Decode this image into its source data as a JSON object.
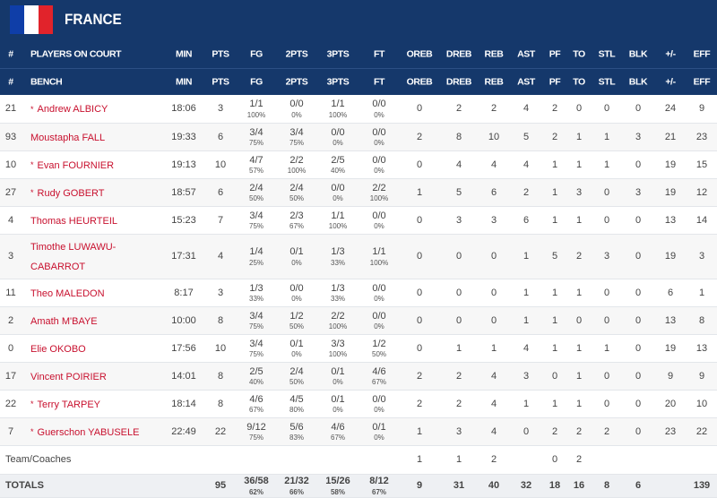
{
  "team": "FRANCE",
  "header_rows": [
    [
      "#",
      "PLAYERS ON COURT",
      "MIN",
      "PTS",
      "FG",
      "2PTS",
      "3PTS",
      "FT",
      "OREB",
      "DREB",
      "REB",
      "AST",
      "PF",
      "TO",
      "STL",
      "BLK",
      "+/-",
      "EFF"
    ],
    [
      "#",
      "BENCH",
      "MIN",
      "PTS",
      "FG",
      "2PTS",
      "3PTS",
      "FT",
      "OREB",
      "DREB",
      "REB",
      "AST",
      "PF",
      "TO",
      "STL",
      "BLK",
      "+/-",
      "EFF"
    ]
  ],
  "players": [
    {
      "number": 21,
      "starter_mark": "*",
      "name": "Andrew ALBICY",
      "min": "18:06",
      "pts": 3,
      "fg": {
        "att": "1/1",
        "pct": "100%"
      },
      "p2": {
        "att": "0/0",
        "pct": "0%"
      },
      "p3": {
        "att": "1/1",
        "pct": "100%"
      },
      "ft": {
        "att": "0/0",
        "pct": "0%"
      },
      "oreb": 0,
      "dreb": 2,
      "reb": 2,
      "ast": 4,
      "pf": 2,
      "to": 0,
      "stl": 0,
      "blk": 0,
      "pm": 24,
      "eff": 9
    },
    {
      "number": 93,
      "name": "Moustapha FALL",
      "min": "19:33",
      "pts": 6,
      "fg": {
        "att": "3/4",
        "pct": "75%"
      },
      "p2": {
        "att": "3/4",
        "pct": "75%"
      },
      "p3": {
        "att": "0/0",
        "pct": "0%"
      },
      "ft": {
        "att": "0/0",
        "pct": "0%"
      },
      "oreb": 2,
      "dreb": 8,
      "reb": 10,
      "ast": 5,
      "pf": 2,
      "to": 1,
      "stl": 1,
      "blk": 3,
      "pm": 21,
      "eff": 23
    },
    {
      "number": 10,
      "starter_mark": "*",
      "name": "Evan FOURNIER",
      "min": "19:13",
      "pts": 10,
      "fg": {
        "att": "4/7",
        "pct": "57%"
      },
      "p2": {
        "att": "2/2",
        "pct": "100%"
      },
      "p3": {
        "att": "2/5",
        "pct": "40%"
      },
      "ft": {
        "att": "0/0",
        "pct": "0%"
      },
      "oreb": 0,
      "dreb": 4,
      "reb": 4,
      "ast": 4,
      "pf": 1,
      "to": 1,
      "stl": 1,
      "blk": 0,
      "pm": 19,
      "eff": 15
    },
    {
      "number": 27,
      "starter_mark": "*",
      "name": "Rudy GOBERT",
      "min": "18:57",
      "pts": 6,
      "fg": {
        "att": "2/4",
        "pct": "50%"
      },
      "p2": {
        "att": "2/4",
        "pct": "50%"
      },
      "p3": {
        "att": "0/0",
        "pct": "0%"
      },
      "ft": {
        "att": "2/2",
        "pct": "100%"
      },
      "oreb": 1,
      "dreb": 5,
      "reb": 6,
      "ast": 2,
      "pf": 1,
      "to": 3,
      "stl": 0,
      "blk": 3,
      "pm": 19,
      "eff": 12
    },
    {
      "number": 4,
      "name": "Thomas HEURTEIL",
      "min": "15:23",
      "pts": 7,
      "fg": {
        "att": "3/4",
        "pct": "75%"
      },
      "p2": {
        "att": "2/3",
        "pct": "67%"
      },
      "p3": {
        "att": "1/1",
        "pct": "100%"
      },
      "ft": {
        "att": "0/0",
        "pct": "0%"
      },
      "oreb": 0,
      "dreb": 3,
      "reb": 3,
      "ast": 6,
      "pf": 1,
      "to": 1,
      "stl": 0,
      "blk": 0,
      "pm": 13,
      "eff": 14
    },
    {
      "number": 3,
      "name": "Timothe LUWAWU-CABARROT",
      "min": "17:31",
      "pts": 4,
      "fg": {
        "att": "1/4",
        "pct": "25%"
      },
      "p2": {
        "att": "0/1",
        "pct": "0%"
      },
      "p3": {
        "att": "1/3",
        "pct": "33%"
      },
      "ft": {
        "att": "1/1",
        "pct": "100%"
      },
      "oreb": 0,
      "dreb": 0,
      "reb": 0,
      "ast": 1,
      "pf": 5,
      "to": 2,
      "stl": 3,
      "blk": 0,
      "pm": 19,
      "eff": 3
    },
    {
      "number": 11,
      "name": "Theo MALEDON",
      "min": "8:17",
      "pts": 3,
      "fg": {
        "att": "1/3",
        "pct": "33%"
      },
      "p2": {
        "att": "0/0",
        "pct": "0%"
      },
      "p3": {
        "att": "1/3",
        "pct": "33%"
      },
      "ft": {
        "att": "0/0",
        "pct": "0%"
      },
      "oreb": 0,
      "dreb": 0,
      "reb": 0,
      "ast": 1,
      "pf": 1,
      "to": 1,
      "stl": 0,
      "blk": 0,
      "pm": 6,
      "eff": 1
    },
    {
      "number": 2,
      "name": "Amath M'BAYE",
      "min": "10:00",
      "pts": 8,
      "fg": {
        "att": "3/4",
        "pct": "75%"
      },
      "p2": {
        "att": "1/2",
        "pct": "50%"
      },
      "p3": {
        "att": "2/2",
        "pct": "100%"
      },
      "ft": {
        "att": "0/0",
        "pct": "0%"
      },
      "oreb": 0,
      "dreb": 0,
      "reb": 0,
      "ast": 1,
      "pf": 1,
      "to": 0,
      "stl": 0,
      "blk": 0,
      "pm": 13,
      "eff": 8
    },
    {
      "number": 0,
      "name": "Elie OKOBO",
      "min": "17:56",
      "pts": 10,
      "fg": {
        "att": "3/4",
        "pct": "75%"
      },
      "p2": {
        "att": "0/1",
        "pct": "0%"
      },
      "p3": {
        "att": "3/3",
        "pct": "100%"
      },
      "ft": {
        "att": "1/2",
        "pct": "50%"
      },
      "oreb": 0,
      "dreb": 1,
      "reb": 1,
      "ast": 4,
      "pf": 1,
      "to": 1,
      "stl": 1,
      "blk": 0,
      "pm": 19,
      "eff": 13
    },
    {
      "number": 17,
      "name": "Vincent POIRIER",
      "min": "14:01",
      "pts": 8,
      "fg": {
        "att": "2/5",
        "pct": "40%"
      },
      "p2": {
        "att": "2/4",
        "pct": "50%"
      },
      "p3": {
        "att": "0/1",
        "pct": "0%"
      },
      "ft": {
        "att": "4/6",
        "pct": "67%"
      },
      "oreb": 2,
      "dreb": 2,
      "reb": 4,
      "ast": 3,
      "pf": 0,
      "to": 1,
      "stl": 0,
      "blk": 0,
      "pm": 9,
      "eff": 9
    },
    {
      "number": 22,
      "starter_mark": "*",
      "name": "Terry TARPEY",
      "min": "18:14",
      "pts": 8,
      "fg": {
        "att": "4/6",
        "pct": "67%"
      },
      "p2": {
        "att": "4/5",
        "pct": "80%"
      },
      "p3": {
        "att": "0/1",
        "pct": "0%"
      },
      "ft": {
        "att": "0/0",
        "pct": "0%"
      },
      "oreb": 2,
      "dreb": 2,
      "reb": 4,
      "ast": 1,
      "pf": 1,
      "to": 1,
      "stl": 0,
      "blk": 0,
      "pm": 20,
      "eff": 10
    },
    {
      "number": 7,
      "starter_mark": "*",
      "name": "Guerschon YABUSELE",
      "min": "22:49",
      "pts": 22,
      "fg": {
        "att": "9/12",
        "pct": "75%"
      },
      "p2": {
        "att": "5/6",
        "pct": "83%"
      },
      "p3": {
        "att": "4/6",
        "pct": "67%"
      },
      "ft": {
        "att": "0/1",
        "pct": "0%"
      },
      "oreb": 1,
      "dreb": 3,
      "reb": 4,
      "ast": 0,
      "pf": 2,
      "to": 2,
      "stl": 2,
      "blk": 0,
      "pm": 23,
      "eff": 22
    }
  ],
  "team_coaches": {
    "label": "Team/Coaches",
    "oreb": 1,
    "dreb": 1,
    "reb": 2,
    "pf": 0,
    "to": 2
  },
  "totals": {
    "label": "TOTALS",
    "pts": 95,
    "fg": {
      "att": "36/58",
      "pct": "62%"
    },
    "p2": {
      "att": "21/32",
      "pct": "66%"
    },
    "p3": {
      "att": "15/26",
      "pct": "58%"
    },
    "ft": {
      "att": "8/12",
      "pct": "67%"
    },
    "oreb": 9,
    "dreb": 31,
    "reb": 40,
    "ast": 32,
    "pf": 18,
    "to": 16,
    "stl": 8,
    "blk": 6,
    "eff": 139
  }
}
